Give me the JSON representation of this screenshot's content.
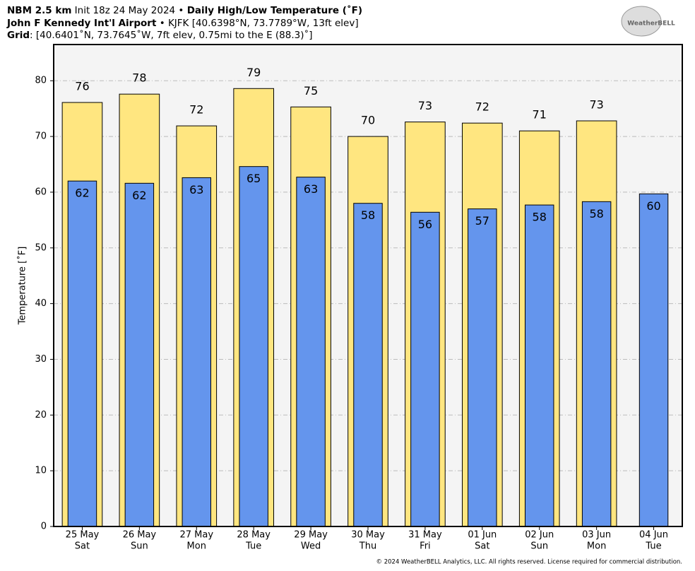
{
  "header": {
    "line1": [
      {
        "text": "NBM 2.5 km",
        "bold": true
      },
      {
        "text": " Init 18z 24 May 2024 • ",
        "bold": false
      },
      {
        "text": "Daily High/Low Temperature (˚F)",
        "bold": true
      }
    ],
    "line2": [
      {
        "text": "John F Kennedy Int'l Airport",
        "bold": true
      },
      {
        "text": " • KJFK [40.6398°N, 73.7789°W, 13ft elev]",
        "bold": false
      }
    ],
    "line3": [
      {
        "text": "Grid",
        "bold": true
      },
      {
        "text": ": [40.6401˚N, 73.7645˚W, 7ft elev, 0.75mi to the E (88.3)˚]",
        "bold": false
      }
    ],
    "logo": "WeatherBELL",
    "footer": "© 2024 WeatherBELL Analytics, LLC. All rights reserved. License required for commercial distribution."
  },
  "chart_data": {
    "type": "bar",
    "y_label": "Temperature [˚F]",
    "categories": [
      "25 May",
      "26 May",
      "27 May",
      "28 May",
      "29 May",
      "30 May",
      "31 May",
      "01 Jun",
      "02 Jun",
      "03 Jun",
      "04 Jun"
    ],
    "weekdays": [
      "Sat",
      "Sun",
      "Mon",
      "Tue",
      "Wed",
      "Thu",
      "Fri",
      "Sat",
      "Sun",
      "Mon",
      "Tue"
    ],
    "series": [
      {
        "name": "High",
        "color": "#ffe680",
        "width": 0.7,
        "values": [
          76.1,
          77.6,
          71.9,
          78.6,
          75.3,
          70.0,
          72.6,
          72.4,
          71.0,
          72.8,
          null
        ],
        "value_labels": [
          "76",
          "78",
          "72",
          "79",
          "75",
          "70",
          "73",
          "72",
          "71",
          "73",
          null
        ]
      },
      {
        "name": "Low",
        "color": "#6495ed",
        "width": 0.5,
        "values": [
          62.0,
          61.6,
          62.6,
          64.6,
          62.7,
          58.0,
          56.4,
          57.0,
          57.7,
          58.3,
          59.7
        ],
        "value_labels": [
          "62",
          "62",
          "63",
          "65",
          "63",
          "58",
          "56",
          "57",
          "58",
          "58",
          "60"
        ]
      }
    ],
    "ylim": [
      0,
      86.5
    ],
    "yticks": [
      0,
      10,
      20,
      30,
      40,
      50,
      60,
      70,
      80
    ],
    "grid": true
  }
}
